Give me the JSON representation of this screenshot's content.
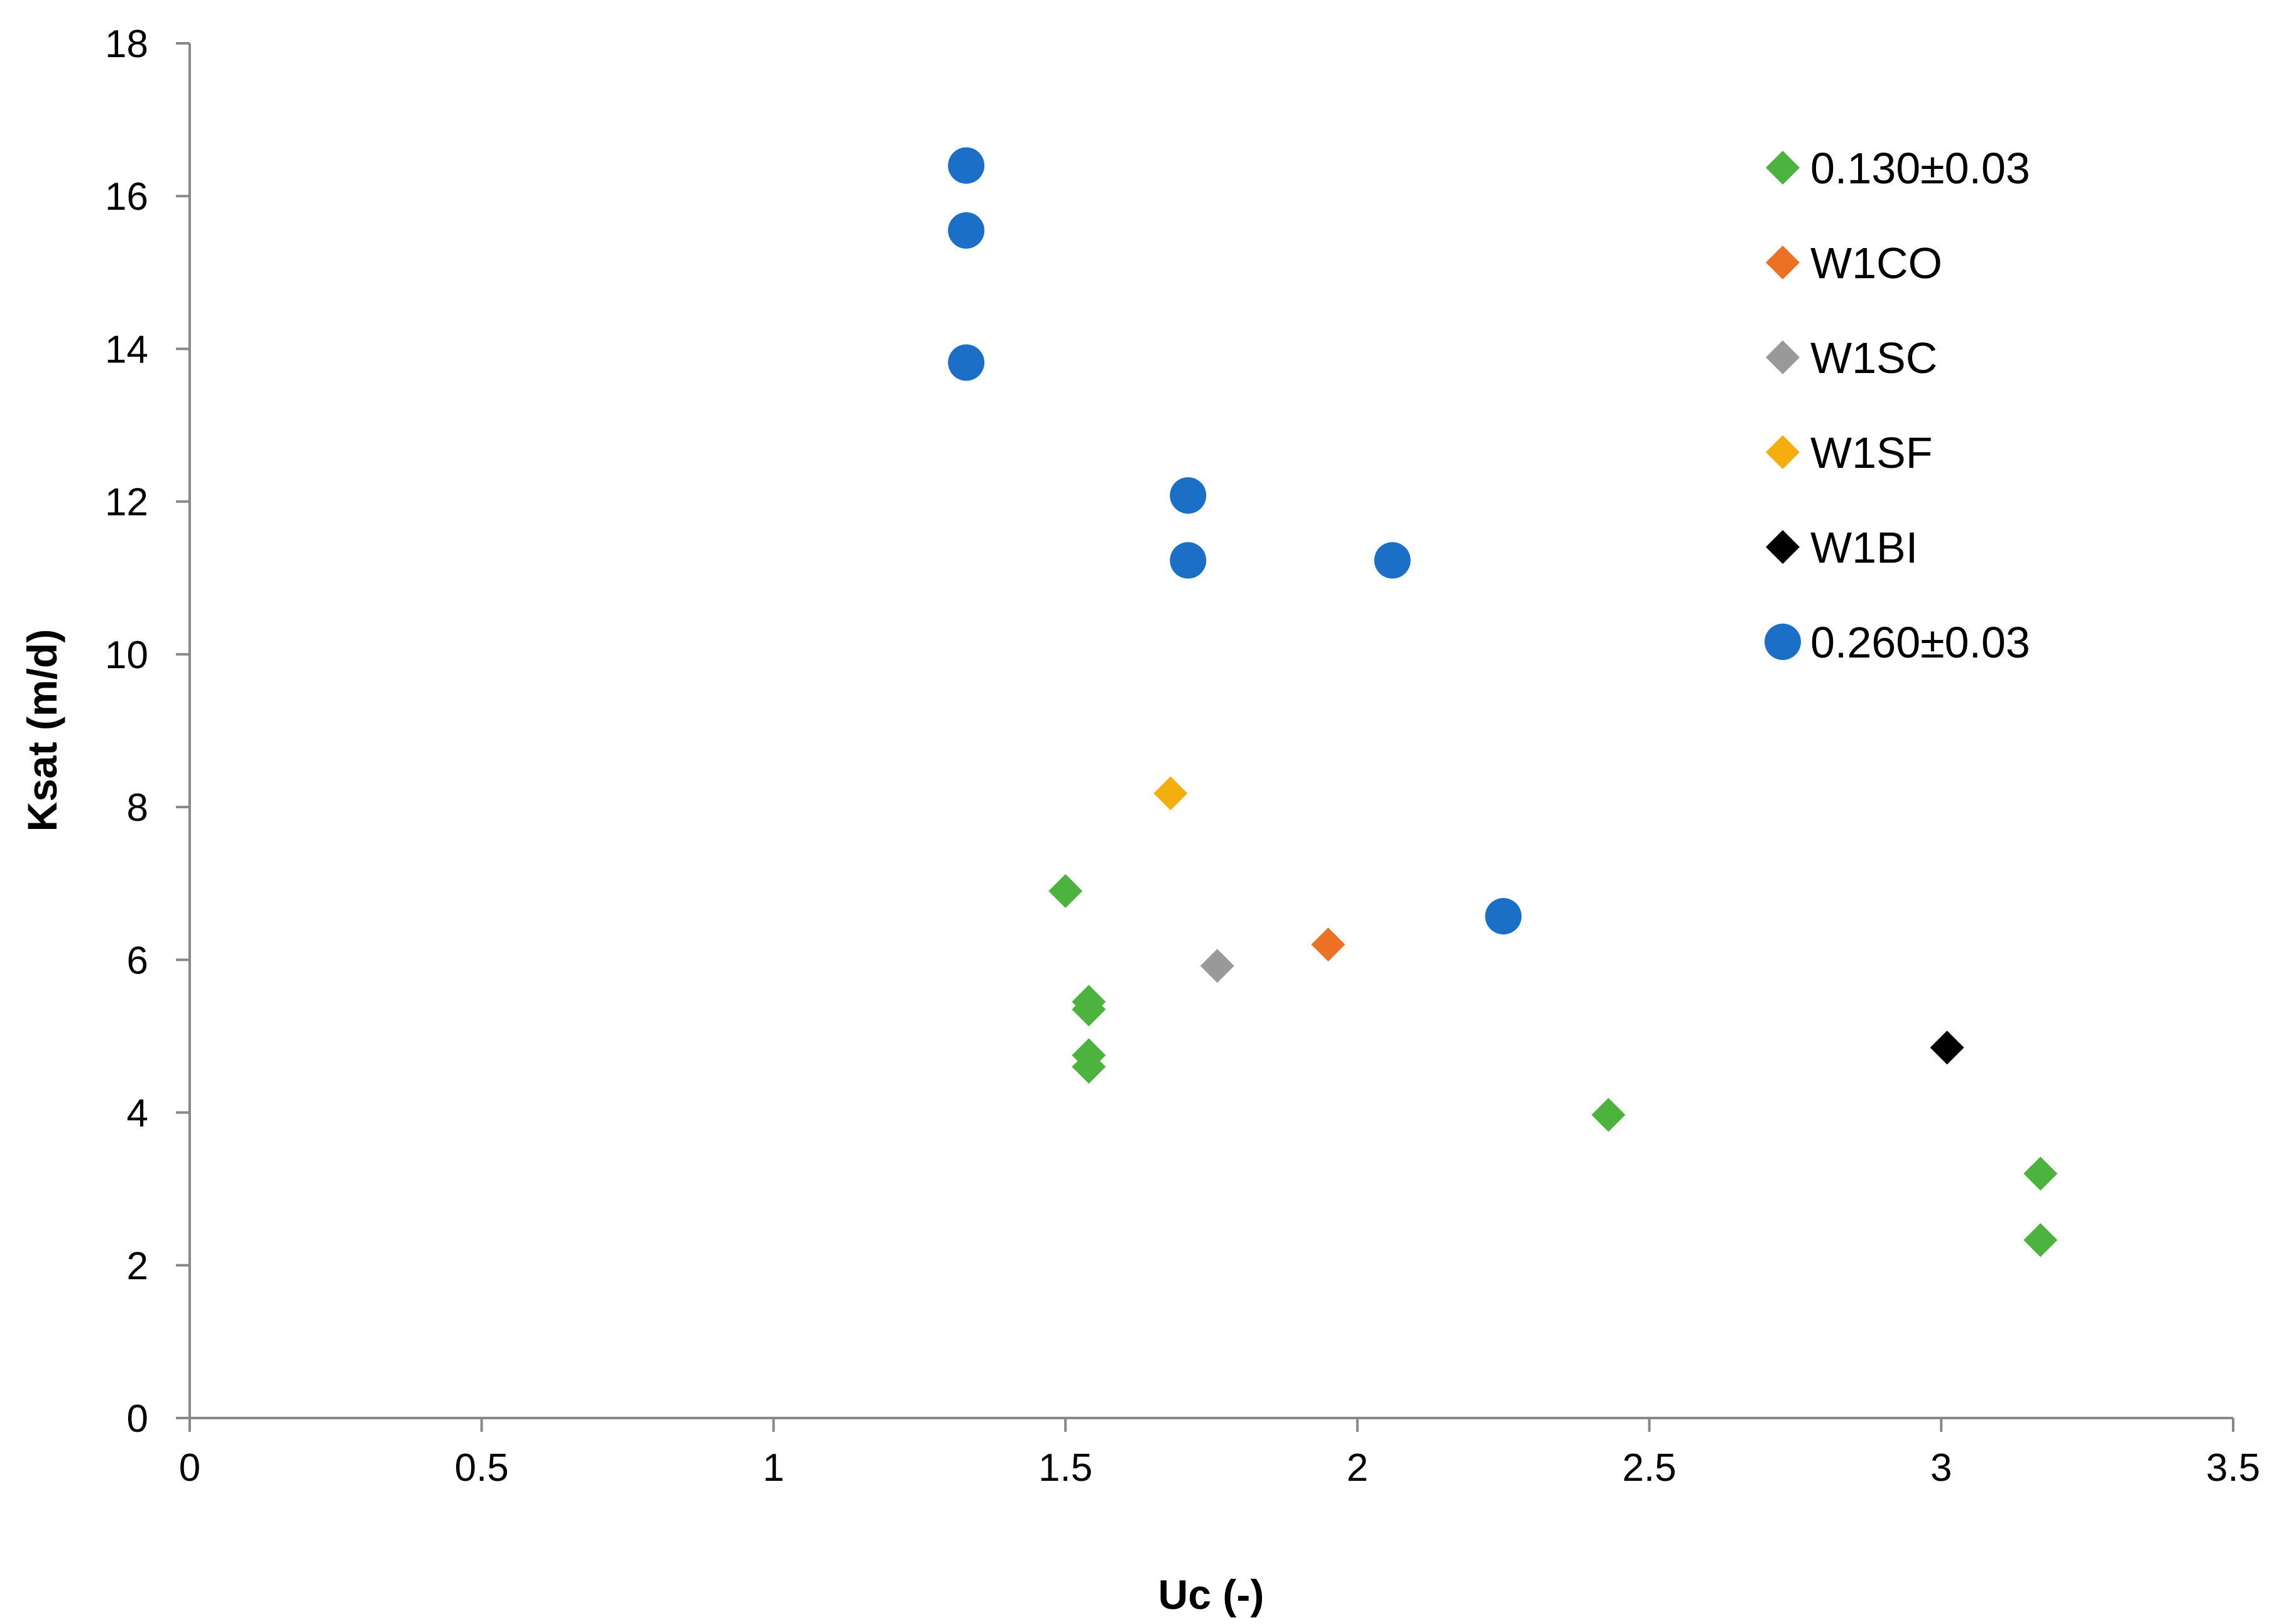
{
  "chart_data": {
    "type": "scatter",
    "title": "",
    "xlabel": "Uc (-)",
    "ylabel": "Ksat (m/d)",
    "xlim": [
      0,
      3.5
    ],
    "ylim": [
      0,
      18
    ],
    "x_ticks": [
      0,
      0.5,
      1,
      1.5,
      2,
      2.5,
      3,
      3.5
    ],
    "y_ticks": [
      0,
      2,
      4,
      6,
      8,
      10,
      12,
      14,
      16,
      18
    ],
    "x_tick_labels": [
      "0",
      "0.5",
      "1",
      "1.5",
      "2",
      "2.5",
      "3",
      "3.5"
    ],
    "y_tick_labels": [
      "0",
      "2",
      "4",
      "6",
      "8",
      "10",
      "12",
      "14",
      "16",
      "18"
    ],
    "grid": false,
    "legend_position": "top-right",
    "series": [
      {
        "name": "0.130±0.03",
        "marker": "diamond",
        "color": "#4CB33E",
        "points": [
          {
            "x": 1.5,
            "y": 6.9
          },
          {
            "x": 1.54,
            "y": 5.45
          },
          {
            "x": 1.54,
            "y": 5.35
          },
          {
            "x": 1.54,
            "y": 4.75
          },
          {
            "x": 1.54,
            "y": 4.6
          },
          {
            "x": 2.43,
            "y": 3.97
          },
          {
            "x": 3.17,
            "y": 3.2
          },
          {
            "x": 3.17,
            "y": 2.33
          }
        ]
      },
      {
        "name": "W1CO",
        "marker": "diamond",
        "color": "#ED7124",
        "points": [
          {
            "x": 1.95,
            "y": 6.2
          }
        ]
      },
      {
        "name": "W1SC",
        "marker": "diamond",
        "color": "#999999",
        "points": [
          {
            "x": 1.76,
            "y": 5.92
          }
        ]
      },
      {
        "name": "W1SF",
        "marker": "diamond",
        "color": "#F5AE10",
        "points": [
          {
            "x": 1.68,
            "y": 8.18
          }
        ]
      },
      {
        "name": "W1BI",
        "marker": "diamond",
        "color": "#000000",
        "points": [
          {
            "x": 3.01,
            "y": 4.85
          }
        ]
      },
      {
        "name": "0.260±0.03",
        "marker": "circle",
        "color": "#1C6FC7",
        "points": [
          {
            "x": 1.33,
            "y": 16.4
          },
          {
            "x": 1.33,
            "y": 15.55
          },
          {
            "x": 1.33,
            "y": 13.82
          },
          {
            "x": 1.71,
            "y": 12.08
          },
          {
            "x": 1.71,
            "y": 11.23
          },
          {
            "x": 2.06,
            "y": 11.23
          },
          {
            "x": 2.25,
            "y": 6.57
          }
        ]
      }
    ]
  }
}
